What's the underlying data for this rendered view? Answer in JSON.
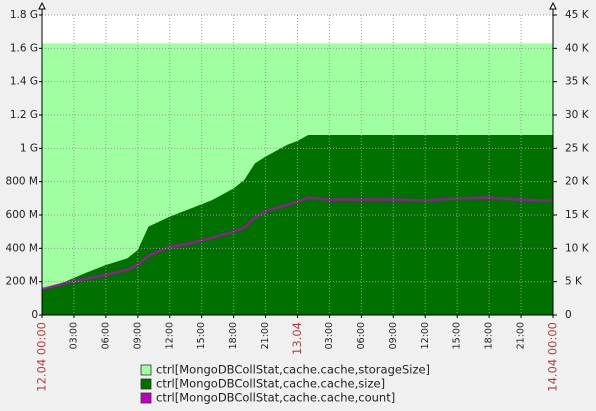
{
  "chart_data": {
    "type": "area",
    "x": [
      0,
      1,
      2,
      4,
      6,
      8,
      9,
      10,
      11,
      12,
      14,
      16,
      18,
      19,
      20,
      21,
      23,
      24,
      25,
      27,
      30,
      33,
      36,
      39,
      42,
      45,
      48
    ],
    "xlim": [
      0,
      48
    ],
    "xticks": [
      {
        "value": 0,
        "label": "12.04 00:00"
      },
      {
        "value": 3,
        "label": "03:00"
      },
      {
        "value": 6,
        "label": "06:00"
      },
      {
        "value": 9,
        "label": "09:00"
      },
      {
        "value": 12,
        "label": "12:00"
      },
      {
        "value": 15,
        "label": "15:00"
      },
      {
        "value": 18,
        "label": "18:00"
      },
      {
        "value": 21,
        "label": "21:00"
      },
      {
        "value": 24,
        "label": "13.04"
      },
      {
        "value": 27,
        "label": "03:00"
      },
      {
        "value": 30,
        "label": "06:00"
      },
      {
        "value": 33,
        "label": "09:00"
      },
      {
        "value": 36,
        "label": "12:00"
      },
      {
        "value": 39,
        "label": "15:00"
      },
      {
        "value": 42,
        "label": "18:00"
      },
      {
        "value": 45,
        "label": "21:00"
      },
      {
        "value": 48,
        "label": "14.04 00:00"
      }
    ],
    "ylim": [
      0,
      1800000000
    ],
    "yticks": [
      0,
      {
        "value": 200000000,
        "label": "200 M"
      },
      {
        "value": 400000000,
        "label": "400 M"
      },
      {
        "value": 600000000,
        "label": "600 M"
      },
      {
        "value": 800000000,
        "label": "800 M"
      },
      {
        "value": 1000000000,
        "label": "1 G"
      },
      {
        "value": 1200000000,
        "label": "1.2 G"
      },
      {
        "value": 1400000000,
        "label": "1.4 G"
      },
      {
        "value": 1600000000,
        "label": "1.6 G"
      },
      {
        "value": 1800000000,
        "label": "1.8 G"
      }
    ],
    "y2lim": [
      0,
      45000
    ],
    "y2ticks": [
      0,
      {
        "value": 5000,
        "label": "5 K"
      },
      {
        "value": 10000,
        "label": "10 K"
      },
      {
        "value": 15000,
        "label": "15 K"
      },
      {
        "value": 20000,
        "label": "20 K"
      },
      {
        "value": 25000,
        "label": "25 K"
      },
      {
        "value": 30000,
        "label": "30 K"
      },
      {
        "value": 35000,
        "label": "35 K"
      },
      {
        "value": 40000,
        "label": "40 K"
      },
      {
        "value": 45000,
        "label": "45 K"
      }
    ],
    "grid": true,
    "series": [
      {
        "name": "ctrl[MongoDBCollStat,cache.cache,storageSize]",
        "color": "#a0ffa0",
        "style": "area",
        "values": [
          1630000000,
          1630000000,
          1630000000,
          1630000000,
          1630000000,
          1630000000,
          1630000000,
          1630000000,
          1630000000,
          1630000000,
          1630000000,
          1630000000,
          1630000000,
          1630000000,
          1630000000,
          1630000000,
          1630000000,
          1630000000,
          1630000000,
          1630000000,
          1630000000,
          1630000000,
          1630000000,
          1630000000,
          1630000000,
          1630000000,
          1630000000
        ]
      },
      {
        "name": "ctrl[MongoDBCollStat,cache.cache,size]",
        "color": "#007000",
        "style": "area",
        "values": [
          156000000,
          175000000,
          195000000,
          250000000,
          300000000,
          340000000,
          390000000,
          530000000,
          560000000,
          590000000,
          640000000,
          690000000,
          760000000,
          810000000,
          910000000,
          950000000,
          1020000000,
          1045000000,
          1080000000,
          1080000000,
          1080000000,
          1080000000,
          1080000000,
          1080000000,
          1080000000,
          1080000000,
          1080000000
        ]
      },
      {
        "name": "ctrl[MongoDBCollStat,cache.cache,count]",
        "color": "#c000c0",
        "style": "line",
        "axis": "y2",
        "values": [
          3900,
          4300,
          4700,
          5400,
          6000,
          6800,
          7500,
          8900,
          9600,
          10200,
          10800,
          11600,
          12500,
          13100,
          14600,
          15600,
          16500,
          17000,
          17600,
          17300,
          17300,
          17300,
          17200,
          17500,
          17600,
          17300,
          17100
        ]
      }
    ]
  }
}
